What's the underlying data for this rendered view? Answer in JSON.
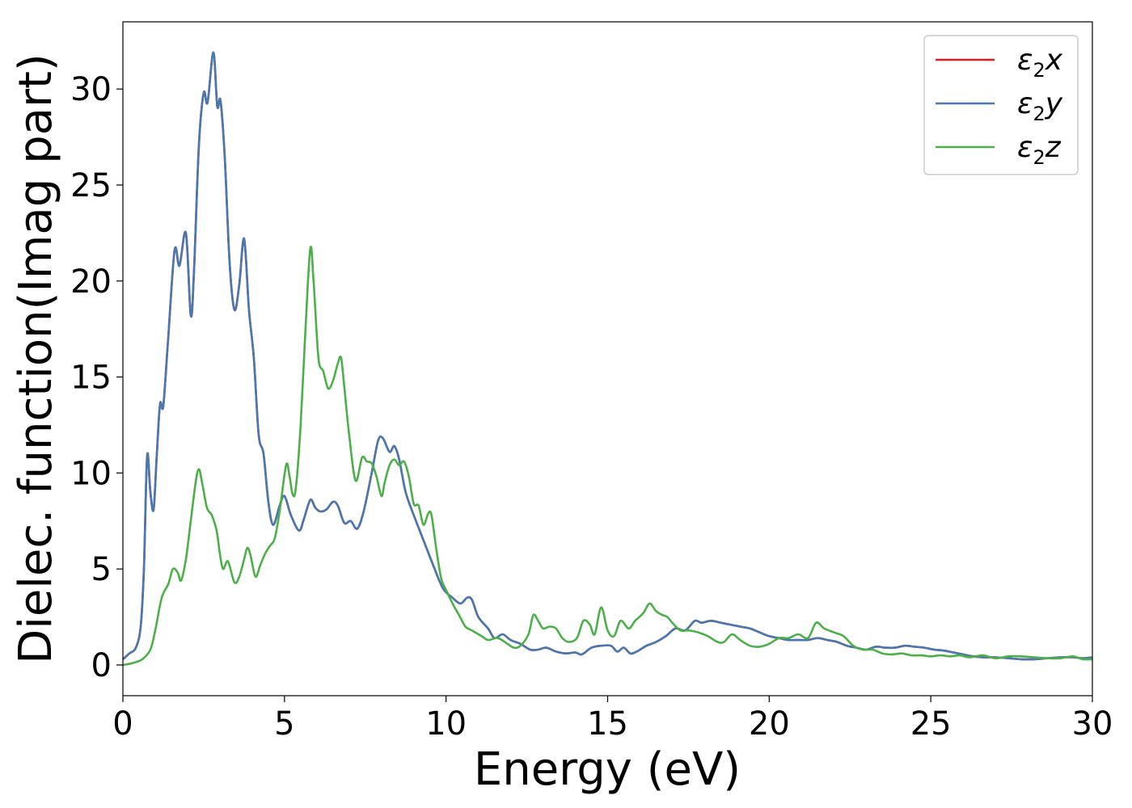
{
  "chart_data": {
    "type": "line",
    "title": "",
    "xlabel": "Energy (eV)",
    "ylabel": "Dielec. function(Imag part)",
    "xlim": [
      0,
      30
    ],
    "ylim": [
      -1.6,
      33.5
    ],
    "x_ticks": [
      0,
      5,
      10,
      15,
      20,
      25,
      30
    ],
    "y_ticks": [
      0,
      5,
      10,
      15,
      20,
      25,
      30
    ],
    "grid": false,
    "legend_position": "top-right",
    "series": [
      {
        "name": "ε2x",
        "legend_base": "ε",
        "legend_sub": "2",
        "legend_var": "x",
        "color": "#e41a1c",
        "points": [
          [
            0,
            0.3
          ],
          [
            0.2,
            0.6
          ],
          [
            0.4,
            0.9
          ],
          [
            0.55,
            2
          ],
          [
            0.65,
            5
          ],
          [
            0.75,
            10.9
          ],
          [
            0.85,
            9
          ],
          [
            0.95,
            8.1
          ],
          [
            1.05,
            11
          ],
          [
            1.15,
            13.6
          ],
          [
            1.25,
            13.5
          ],
          [
            1.4,
            17
          ],
          [
            1.6,
            21.6
          ],
          [
            1.75,
            20.8
          ],
          [
            1.95,
            22.5
          ],
          [
            2.1,
            18.2
          ],
          [
            2.2,
            20.5
          ],
          [
            2.35,
            27
          ],
          [
            2.5,
            29.8
          ],
          [
            2.62,
            29.3
          ],
          [
            2.8,
            31.9
          ],
          [
            2.92,
            29.1
          ],
          [
            3.02,
            29.4
          ],
          [
            3.15,
            26.5
          ],
          [
            3.3,
            21
          ],
          [
            3.45,
            18.5
          ],
          [
            3.6,
            19.8
          ],
          [
            3.75,
            22.2
          ],
          [
            3.9,
            18.5
          ],
          [
            4.05,
            16
          ],
          [
            4.2,
            12
          ],
          [
            4.35,
            11
          ],
          [
            4.5,
            8.5
          ],
          [
            4.65,
            7.3
          ],
          [
            4.85,
            8.3
          ],
          [
            5.0,
            8.8
          ],
          [
            5.2,
            7.8
          ],
          [
            5.45,
            7
          ],
          [
            5.6,
            7.6
          ],
          [
            5.8,
            8.6
          ],
          [
            5.95,
            8.2
          ],
          [
            6.1,
            8
          ],
          [
            6.3,
            8.1
          ],
          [
            6.5,
            8.5
          ],
          [
            6.65,
            8.3
          ],
          [
            6.85,
            7.4
          ],
          [
            7.05,
            7.5
          ],
          [
            7.25,
            7.1
          ],
          [
            7.45,
            8
          ],
          [
            7.7,
            10
          ],
          [
            7.9,
            11.7
          ],
          [
            8.05,
            11.8
          ],
          [
            8.25,
            11.1
          ],
          [
            8.4,
            11.4
          ],
          [
            8.55,
            10.7
          ],
          [
            8.75,
            9
          ],
          [
            9.0,
            7.8
          ],
          [
            9.3,
            6.5
          ],
          [
            9.6,
            5.2
          ],
          [
            9.9,
            4
          ],
          [
            10.2,
            3.5
          ],
          [
            10.45,
            3.2
          ],
          [
            10.65,
            3.5
          ],
          [
            10.8,
            3.4
          ],
          [
            11.0,
            2.5
          ],
          [
            11.3,
            1.9
          ],
          [
            11.5,
            1.4
          ],
          [
            11.75,
            1.6
          ],
          [
            12.0,
            1.3
          ],
          [
            12.3,
            1.1
          ],
          [
            12.6,
            0.8
          ],
          [
            12.85,
            0.8
          ],
          [
            13.1,
            0.9
          ],
          [
            13.4,
            0.7
          ],
          [
            13.7,
            0.6
          ],
          [
            14.0,
            0.65
          ],
          [
            14.2,
            0.55
          ],
          [
            14.5,
            0.9
          ],
          [
            14.8,
            1
          ],
          [
            15.1,
            1
          ],
          [
            15.3,
            0.7
          ],
          [
            15.5,
            0.9
          ],
          [
            15.7,
            0.6
          ],
          [
            15.9,
            0.7
          ],
          [
            16.2,
            1
          ],
          [
            16.5,
            1.2
          ],
          [
            16.8,
            1.5
          ],
          [
            17.1,
            1.9
          ],
          [
            17.4,
            1.8
          ],
          [
            17.7,
            2.3
          ],
          [
            17.9,
            2.2
          ],
          [
            18.2,
            2.3
          ],
          [
            18.5,
            2.2
          ],
          [
            18.8,
            2.1
          ],
          [
            19.1,
            2
          ],
          [
            19.4,
            1.9
          ],
          [
            19.7,
            1.7
          ],
          [
            20.0,
            1.5
          ],
          [
            20.3,
            1.4
          ],
          [
            20.6,
            1.3
          ],
          [
            20.9,
            1.3
          ],
          [
            21.2,
            1.3
          ],
          [
            21.5,
            1.4
          ],
          [
            21.8,
            1.3
          ],
          [
            22.1,
            1.2
          ],
          [
            22.4,
            1
          ],
          [
            22.7,
            0.9
          ],
          [
            23.0,
            0.8
          ],
          [
            23.3,
            0.95
          ],
          [
            23.6,
            0.9
          ],
          [
            23.9,
            0.9
          ],
          [
            24.2,
            1
          ],
          [
            24.5,
            0.95
          ],
          [
            24.8,
            0.9
          ],
          [
            25.1,
            0.8
          ],
          [
            25.4,
            0.75
          ],
          [
            25.7,
            0.65
          ],
          [
            26.0,
            0.55
          ],
          [
            26.3,
            0.45
          ],
          [
            26.6,
            0.4
          ],
          [
            27.0,
            0.4
          ],
          [
            27.4,
            0.35
          ],
          [
            27.8,
            0.3
          ],
          [
            28.2,
            0.3
          ],
          [
            28.6,
            0.35
          ],
          [
            29.0,
            0.4
          ],
          [
            29.4,
            0.4
          ],
          [
            29.7,
            0.35
          ],
          [
            30.0,
            0.4
          ]
        ]
      },
      {
        "name": "ε2y",
        "legend_base": "ε",
        "legend_sub": "2",
        "legend_var": "y",
        "color": "#4878b0",
        "same_as": "ε2x"
      },
      {
        "name": "ε2z",
        "legend_base": "ε",
        "legend_sub": "2",
        "legend_var": "z",
        "color": "#4daf4a",
        "points": [
          [
            0,
            0
          ],
          [
            0.3,
            0.1
          ],
          [
            0.6,
            0.3
          ],
          [
            0.85,
            0.8
          ],
          [
            1.0,
            1.8
          ],
          [
            1.2,
            3.5
          ],
          [
            1.4,
            4.2
          ],
          [
            1.55,
            5
          ],
          [
            1.7,
            4.8
          ],
          [
            1.8,
            4.4
          ],
          [
            1.95,
            5.5
          ],
          [
            2.1,
            7.5
          ],
          [
            2.25,
            9.5
          ],
          [
            2.35,
            10.2
          ],
          [
            2.45,
            9.5
          ],
          [
            2.6,
            8.2
          ],
          [
            2.75,
            7.8
          ],
          [
            2.9,
            7
          ],
          [
            3.0,
            5.8
          ],
          [
            3.1,
            5
          ],
          [
            3.25,
            5.4
          ],
          [
            3.45,
            4.3
          ],
          [
            3.6,
            4.6
          ],
          [
            3.75,
            5.5
          ],
          [
            3.85,
            6.1
          ],
          [
            3.95,
            5.7
          ],
          [
            4.1,
            4.6
          ],
          [
            4.25,
            5.2
          ],
          [
            4.4,
            5.8
          ],
          [
            4.55,
            6.2
          ],
          [
            4.7,
            6.6
          ],
          [
            4.85,
            8
          ],
          [
            5.05,
            10.4
          ],
          [
            5.15,
            9.9
          ],
          [
            5.25,
            8.9
          ],
          [
            5.35,
            9.2
          ],
          [
            5.5,
            12.5
          ],
          [
            5.65,
            17.5
          ],
          [
            5.8,
            21.7
          ],
          [
            5.9,
            20
          ],
          [
            6.05,
            16
          ],
          [
            6.2,
            15.3
          ],
          [
            6.35,
            14.4
          ],
          [
            6.5,
            14.8
          ],
          [
            6.65,
            15.7
          ],
          [
            6.75,
            16
          ],
          [
            6.85,
            14.5
          ],
          [
            7.0,
            12
          ],
          [
            7.2,
            9.6
          ],
          [
            7.4,
            10.8
          ],
          [
            7.55,
            10.6
          ],
          [
            7.7,
            10.5
          ],
          [
            7.85,
            9.8
          ],
          [
            8.0,
            8.8
          ],
          [
            8.1,
            9.5
          ],
          [
            8.25,
            10.4
          ],
          [
            8.4,
            10.7
          ],
          [
            8.55,
            10.4
          ],
          [
            8.7,
            10.6
          ],
          [
            8.85,
            9.8
          ],
          [
            9.0,
            8.4
          ],
          [
            9.15,
            8.3
          ],
          [
            9.3,
            7.3
          ],
          [
            9.45,
            7.9
          ],
          [
            9.55,
            7.8
          ],
          [
            9.7,
            6
          ],
          [
            9.85,
            4.5
          ],
          [
            10.0,
            3.9
          ],
          [
            10.2,
            3.2
          ],
          [
            10.4,
            2.6
          ],
          [
            10.6,
            2
          ],
          [
            10.8,
            1.8
          ],
          [
            11.1,
            1.5
          ],
          [
            11.3,
            1.3
          ],
          [
            11.6,
            1.4
          ],
          [
            11.9,
            1.1
          ],
          [
            12.1,
            0.9
          ],
          [
            12.3,
            1
          ],
          [
            12.55,
            1.6
          ],
          [
            12.7,
            2.6
          ],
          [
            12.85,
            2.3
          ],
          [
            13.0,
            1.9
          ],
          [
            13.2,
            2
          ],
          [
            13.4,
            1.9
          ],
          [
            13.6,
            1.4
          ],
          [
            13.8,
            1.2
          ],
          [
            14.05,
            1.4
          ],
          [
            14.25,
            2.3
          ],
          [
            14.45,
            2.1
          ],
          [
            14.6,
            1.6
          ],
          [
            14.8,
            3
          ],
          [
            15.0,
            1.8
          ],
          [
            15.2,
            1.5
          ],
          [
            15.4,
            2.3
          ],
          [
            15.65,
            1.9
          ],
          [
            15.85,
            2.3
          ],
          [
            16.1,
            2.7
          ],
          [
            16.3,
            3.2
          ],
          [
            16.5,
            2.8
          ],
          [
            16.7,
            2.6
          ],
          [
            16.85,
            2.5
          ],
          [
            17.0,
            2.2
          ],
          [
            17.25,
            1.8
          ],
          [
            17.5,
            1.8
          ],
          [
            17.8,
            1.7
          ],
          [
            18.1,
            1.5
          ],
          [
            18.4,
            1.2
          ],
          [
            18.6,
            1.2
          ],
          [
            18.85,
            1.6
          ],
          [
            19.1,
            1.3
          ],
          [
            19.4,
            1
          ],
          [
            19.7,
            0.95
          ],
          [
            20.0,
            1.1
          ],
          [
            20.3,
            1.4
          ],
          [
            20.6,
            1.4
          ],
          [
            20.9,
            1.6
          ],
          [
            21.2,
            1.4
          ],
          [
            21.45,
            2.2
          ],
          [
            21.7,
            1.9
          ],
          [
            22.0,
            1.7
          ],
          [
            22.3,
            1.5
          ],
          [
            22.6,
            1
          ],
          [
            22.9,
            0.8
          ],
          [
            23.2,
            0.8
          ],
          [
            23.5,
            0.6
          ],
          [
            23.8,
            0.55
          ],
          [
            24.1,
            0.6
          ],
          [
            24.4,
            0.5
          ],
          [
            24.7,
            0.5
          ],
          [
            25.0,
            0.45
          ],
          [
            25.3,
            0.5
          ],
          [
            25.6,
            0.45
          ],
          [
            25.9,
            0.5
          ],
          [
            26.2,
            0.4
          ],
          [
            26.6,
            0.5
          ],
          [
            27.0,
            0.35
          ],
          [
            27.4,
            0.45
          ],
          [
            27.8,
            0.45
          ],
          [
            28.2,
            0.4
          ],
          [
            28.6,
            0.35
          ],
          [
            29.0,
            0.35
          ],
          [
            29.4,
            0.45
          ],
          [
            29.7,
            0.3
          ],
          [
            30.0,
            0.3
          ]
        ]
      }
    ]
  }
}
